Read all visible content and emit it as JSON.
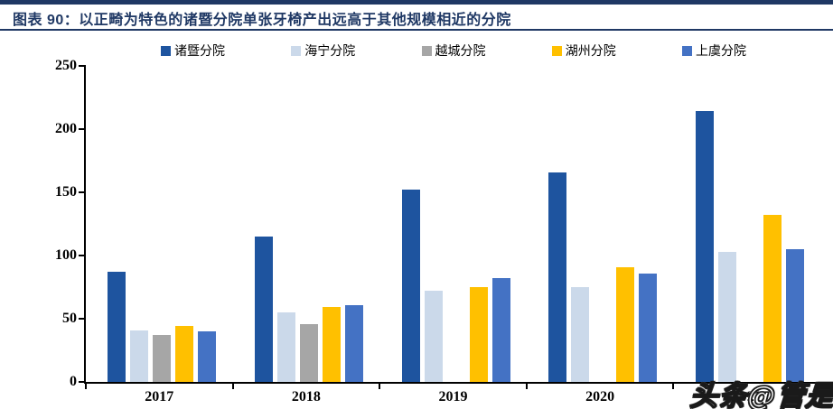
{
  "header": {
    "title": "图表 90：以正畸为特色的诸暨分院单张牙椅产出远高于其他规模相近的分院",
    "accent_color": "#1F3864"
  },
  "watermark": {
    "text": "头条@管是"
  },
  "chart_data": {
    "type": "bar",
    "title": "",
    "xlabel": "",
    "ylabel": "",
    "categories": [
      "2017",
      "2018",
      "2019",
      "2020",
      "2021"
    ],
    "series": [
      {
        "name": "诸暨分院",
        "color": "#1E549F",
        "values": [
          87,
          115,
          152,
          166,
          214
        ]
      },
      {
        "name": "海宁分院",
        "color": "#CBD9EA",
        "values": [
          41,
          55,
          72,
          75,
          103
        ]
      },
      {
        "name": "越城分院",
        "color": "#A6A6A6",
        "values": [
          37,
          46,
          null,
          null,
          null
        ]
      },
      {
        "name": "湖州分院",
        "color": "#FFC000",
        "values": [
          44,
          59,
          75,
          91,
          132
        ]
      },
      {
        "name": "上虞分院",
        "color": "#4472C4",
        "values": [
          40,
          61,
          82,
          86,
          105
        ]
      }
    ],
    "ylim": [
      0,
      250
    ],
    "yticks": [
      0,
      50,
      100,
      150,
      200,
      250
    ],
    "grid": false,
    "legend_position": "top"
  }
}
